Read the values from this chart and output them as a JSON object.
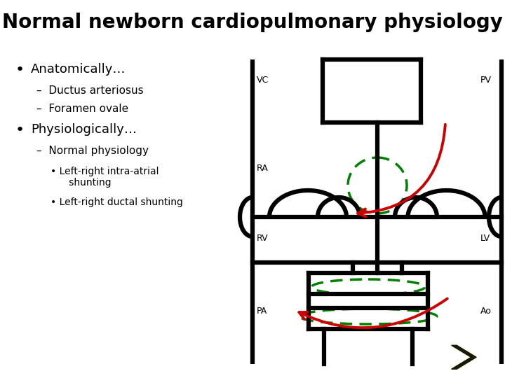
{
  "title": "Normal newborn cardiopulmonary physiology",
  "title_fontsize": 20,
  "bg_color": "#ffffff",
  "text_color": "#000000",
  "bullet1": "Anatomically…",
  "sub1a": "Ductus arteriosus",
  "sub1b": "Foramen ovale",
  "bullet2": "Physiologically…",
  "sub2a": "Normal physiology",
  "sub2b1": "Left-right intra-atrial\nshunting",
  "sub2b2": "Left-right ductal shunting",
  "diagram_color": "#000000",
  "arrow_color": "#cc0000",
  "dashed_color": "#008000",
  "nav_bg": "#f5c400",
  "nav_arrow": "#1a1a00",
  "lw_thick": 4.5,
  "lw_dashed": 2.5
}
